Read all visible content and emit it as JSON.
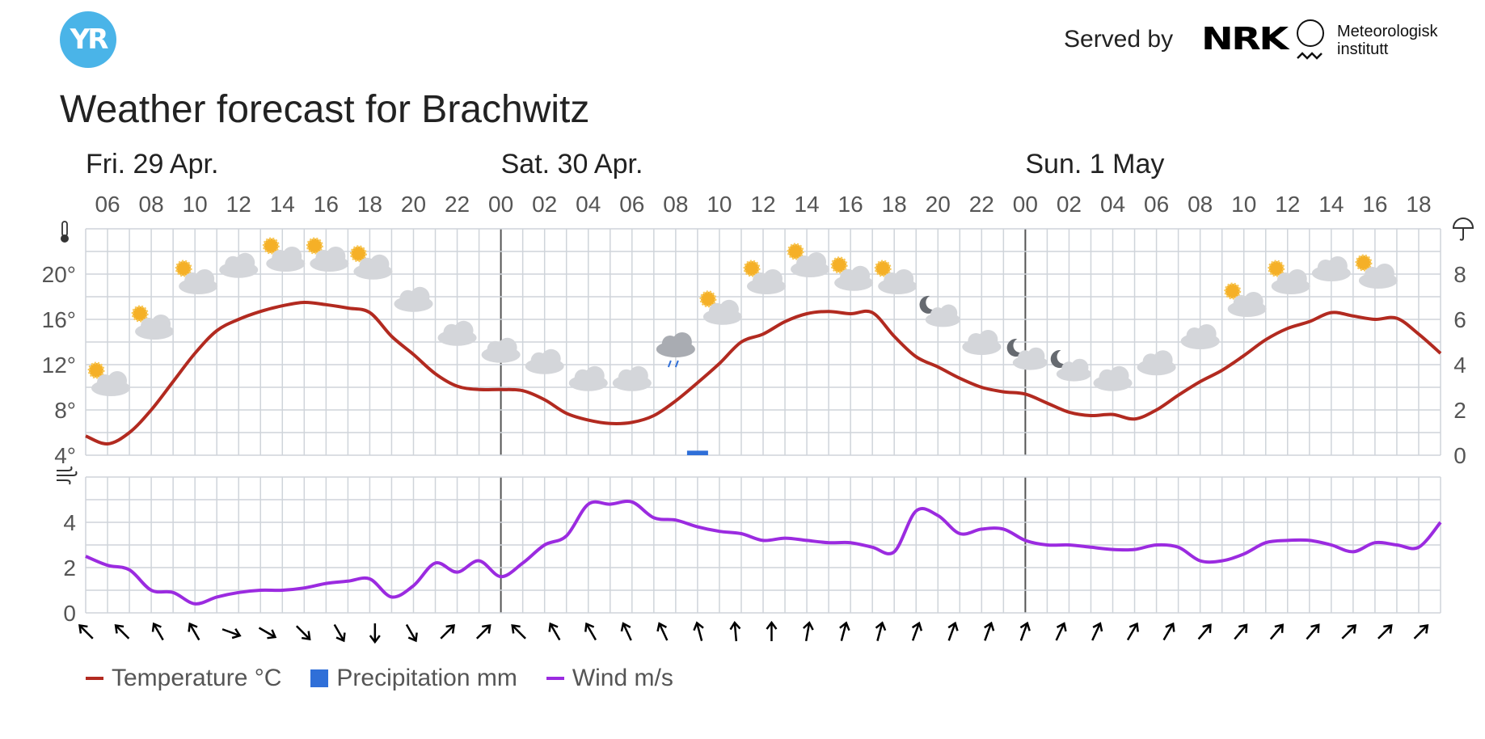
{
  "header": {
    "logo_text": "YR",
    "served_by": "Served by",
    "nrk_logo": "NRK",
    "met_line1": "Meteorologisk",
    "met_line2": "institutt"
  },
  "title": "Weather forecast for Brachwitz",
  "colors": {
    "temperature": "#b22a20",
    "precipitation": "#2f6fd8",
    "wind": "#9b2be0",
    "grid": "#cfd4da",
    "day_separator": "#555555"
  },
  "legend": {
    "temperature": "Temperature °C",
    "precipitation": "Precipitation mm",
    "wind": "Wind m/s"
  },
  "chart_data": {
    "type": "line",
    "days": [
      {
        "label": "Fri. 29 Apr.",
        "start_hour": 5
      },
      {
        "label": "Sat. 30 Apr.",
        "start_hour": 24
      },
      {
        "label": "Sun. 1 May",
        "start_hour": 48
      }
    ],
    "hour_labels": [
      "06",
      "08",
      "10",
      "12",
      "14",
      "16",
      "18",
      "20",
      "22",
      "00",
      "02",
      "04",
      "06",
      "08",
      "10",
      "12",
      "14",
      "16",
      "18",
      "20",
      "22",
      "00",
      "02",
      "04",
      "06",
      "08",
      "10",
      "12",
      "14",
      "16",
      "18"
    ],
    "x_range_hours": [
      5,
      67
    ],
    "temperature": {
      "name": "Temperature °C",
      "ylim": [
        4,
        24
      ],
      "ticks": [
        "4°",
        "8°",
        "12°",
        "16°",
        "20°"
      ],
      "x": [
        5,
        6,
        7,
        8,
        9,
        10,
        11,
        12,
        13,
        14,
        15,
        16,
        17,
        18,
        19,
        20,
        21,
        22,
        23,
        24,
        25,
        26,
        27,
        28,
        29,
        30,
        31,
        32,
        33,
        34,
        35,
        36,
        37,
        38,
        39,
        40,
        41,
        42,
        43,
        44,
        45,
        46,
        47,
        48,
        49,
        50,
        51,
        52,
        53,
        54,
        55,
        56,
        57,
        58,
        59,
        60,
        61,
        62,
        63,
        64,
        65,
        66,
        67
      ],
      "values": [
        5.7,
        5,
        6,
        8,
        10.5,
        13,
        15,
        16,
        16.7,
        17.2,
        17.5,
        17.3,
        17,
        16.6,
        14.5,
        12.9,
        11.2,
        10.1,
        9.8,
        9.8,
        9.7,
        8.9,
        7.7,
        7.1,
        6.8,
        6.9,
        7.5,
        8.8,
        10.4,
        12.1,
        14,
        14.7,
        15.8,
        16.5,
        16.7,
        16.5,
        16.6,
        14.5,
        12.7,
        11.8,
        10.8,
        10,
        9.6,
        9.4,
        8.6,
        7.8,
        7.5,
        7.6,
        7.2,
        8,
        9.3,
        10.5,
        11.5,
        12.8,
        14.2,
        15.2,
        15.8,
        16.6,
        16.3,
        16,
        16.1,
        14.7,
        13
      ]
    },
    "precipitation": {
      "name": "Precipitation mm",
      "ylim": [
        0,
        10
      ],
      "ticks": [
        "0",
        "2",
        "4",
        "6",
        "8"
      ],
      "bars": [
        {
          "x": 33,
          "value": 0.2
        }
      ]
    },
    "wind": {
      "name": "Wind m/s",
      "ylim": [
        0,
        6
      ],
      "ticks": [
        "0",
        "2",
        "4"
      ],
      "x": [
        5,
        6,
        7,
        8,
        9,
        10,
        11,
        12,
        13,
        14,
        15,
        16,
        17,
        18,
        19,
        20,
        21,
        22,
        23,
        24,
        25,
        26,
        27,
        28,
        29,
        30,
        31,
        32,
        33,
        34,
        35,
        36,
        37,
        38,
        39,
        40,
        41,
        42,
        43,
        44,
        45,
        46,
        47,
        48,
        49,
        50,
        51,
        52,
        53,
        54,
        55,
        56,
        57,
        58,
        59,
        60,
        61,
        62,
        63,
        64,
        65,
        66,
        67
      ],
      "values": [
        2.5,
        2.1,
        1.9,
        1,
        0.9,
        0.4,
        0.7,
        0.9,
        1,
        1,
        1.1,
        1.3,
        1.4,
        1.5,
        0.7,
        1.2,
        2.2,
        1.8,
        2.3,
        1.6,
        2.2,
        3,
        3.4,
        4.8,
        4.8,
        4.9,
        4.2,
        4.1,
        3.8,
        3.6,
        3.5,
        3.2,
        3.3,
        3.2,
        3.1,
        3.1,
        2.9,
        2.7,
        4.5,
        4.3,
        3.5,
        3.7,
        3.7,
        3.2,
        3,
        3,
        2.9,
        2.8,
        2.8,
        3,
        2.9,
        2.3,
        2.3,
        2.6,
        3.1,
        3.2,
        3.2,
        3,
        2.7,
        3.1,
        3,
        2.9,
        4
      ]
    },
    "weather_symbols": [
      {
        "x": 6,
        "y": 10.5,
        "icon": "partly-cloudy-day-icon"
      },
      {
        "x": 8,
        "y": 15.5,
        "icon": "partly-cloudy-day-icon"
      },
      {
        "x": 10,
        "y": 19.5,
        "icon": "partly-cloudy-day-icon"
      },
      {
        "x": 12,
        "y": 20.8,
        "icon": "cloudy-icon"
      },
      {
        "x": 14,
        "y": 21.5,
        "icon": "partly-cloudy-day-icon"
      },
      {
        "x": 16,
        "y": 21.5,
        "icon": "partly-cloudy-day-icon"
      },
      {
        "x": 18,
        "y": 20.8,
        "icon": "partly-cloudy-day-icon"
      },
      {
        "x": 20,
        "y": 17.8,
        "icon": "cloudy-icon"
      },
      {
        "x": 22,
        "y": 14.8,
        "icon": "cloudy-icon"
      },
      {
        "x": 24,
        "y": 13.3,
        "icon": "cloudy-icon"
      },
      {
        "x": 26,
        "y": 12.3,
        "icon": "cloudy-icon"
      },
      {
        "x": 28,
        "y": 10.8,
        "icon": "cloudy-icon"
      },
      {
        "x": 30,
        "y": 10.8,
        "icon": "cloudy-icon"
      },
      {
        "x": 32,
        "y": 13.5,
        "icon": "light-rain-icon"
      },
      {
        "x": 34,
        "y": 16.8,
        "icon": "partly-cloudy-day-icon"
      },
      {
        "x": 36,
        "y": 19.5,
        "icon": "partly-cloudy-day-icon"
      },
      {
        "x": 38,
        "y": 21,
        "icon": "partly-cloudy-day-icon"
      },
      {
        "x": 40,
        "y": 19.8,
        "icon": "partly-cloudy-day-icon"
      },
      {
        "x": 42,
        "y": 19.5,
        "icon": "partly-cloudy-day-icon"
      },
      {
        "x": 44,
        "y": 16.5,
        "icon": "partly-cloudy-night-icon"
      },
      {
        "x": 46,
        "y": 14,
        "icon": "cloudy-icon"
      },
      {
        "x": 48,
        "y": 12.7,
        "icon": "partly-cloudy-night-icon"
      },
      {
        "x": 50,
        "y": 11.7,
        "icon": "partly-cloudy-night-icon"
      },
      {
        "x": 52,
        "y": 10.8,
        "icon": "cloudy-icon"
      },
      {
        "x": 54,
        "y": 12.2,
        "icon": "cloudy-icon"
      },
      {
        "x": 56,
        "y": 14.5,
        "icon": "cloudy-icon"
      },
      {
        "x": 58,
        "y": 17.5,
        "icon": "partly-cloudy-day-icon"
      },
      {
        "x": 60,
        "y": 19.5,
        "icon": "partly-cloudy-day-icon"
      },
      {
        "x": 62,
        "y": 20.5,
        "icon": "cloudy-icon"
      },
      {
        "x": 64,
        "y": 20,
        "icon": "partly-cloudy-day-icon"
      }
    ],
    "wind_directions_deg": [
      135,
      135,
      150,
      150,
      -70,
      -60,
      -45,
      -30,
      0,
      -30,
      -135,
      -135,
      135,
      150,
      150,
      155,
      155,
      165,
      175,
      180,
      190,
      195,
      195,
      200,
      200,
      200,
      200,
      205,
      205,
      210,
      210,
      220,
      220,
      220,
      220,
      225,
      225,
      225
    ]
  }
}
